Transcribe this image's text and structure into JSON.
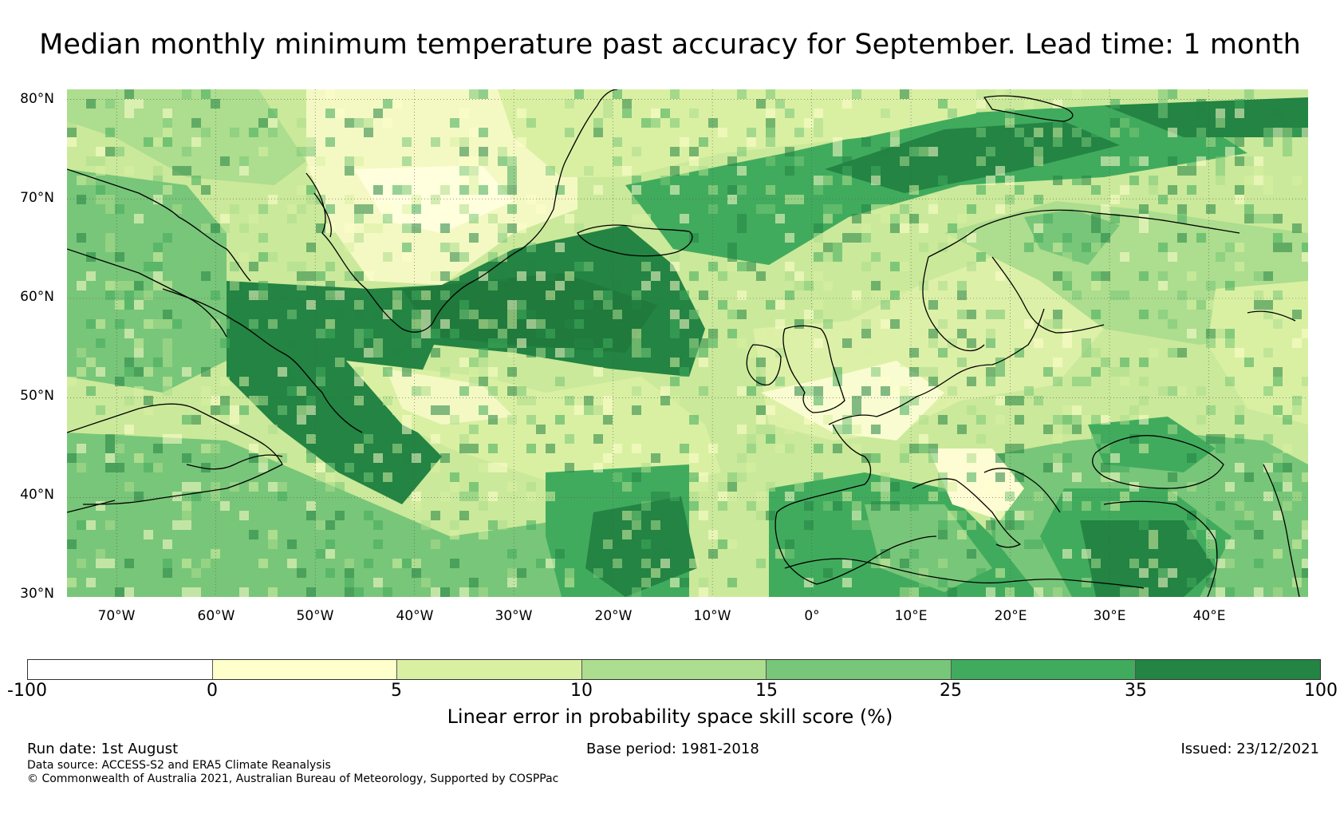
{
  "title": "Median monthly minimum temperature past accuracy for September. Lead time: 1 month",
  "map": {
    "lat_ticks": [
      "80°N",
      "70°N",
      "60°N",
      "50°N",
      "40°N",
      "30°N"
    ],
    "lon_ticks": [
      "70°W",
      "60°W",
      "50°W",
      "40°W",
      "30°W",
      "20°W",
      "10°W",
      "0°",
      "10°E",
      "20°E",
      "30°E",
      "40°E"
    ],
    "extent": {
      "lon": [
        -75,
        50
      ],
      "lat": [
        30,
        81
      ]
    }
  },
  "colorbar": {
    "ticks": [
      "-100",
      "0",
      "5",
      "10",
      "15",
      "25",
      "35",
      "100"
    ],
    "colors": [
      "#ffffff",
      "#ffffcc",
      "#d9f0a3",
      "#addd8e",
      "#78c679",
      "#41ab5d",
      "#238443"
    ],
    "label": "Linear error in probability space skill score (%)"
  },
  "footer": {
    "run_date": "Run date: 1st August",
    "base_period": "Base period: 1981-2018",
    "issued": "Issued: 23/12/2021",
    "data_source": "Data source: ACCESS-S2 and ERA5 Climate Reanalysis",
    "copyright": "© Commonwealth of Australia 2021, Australian Bureau of Meteorology, Supported by COSPPac"
  }
}
